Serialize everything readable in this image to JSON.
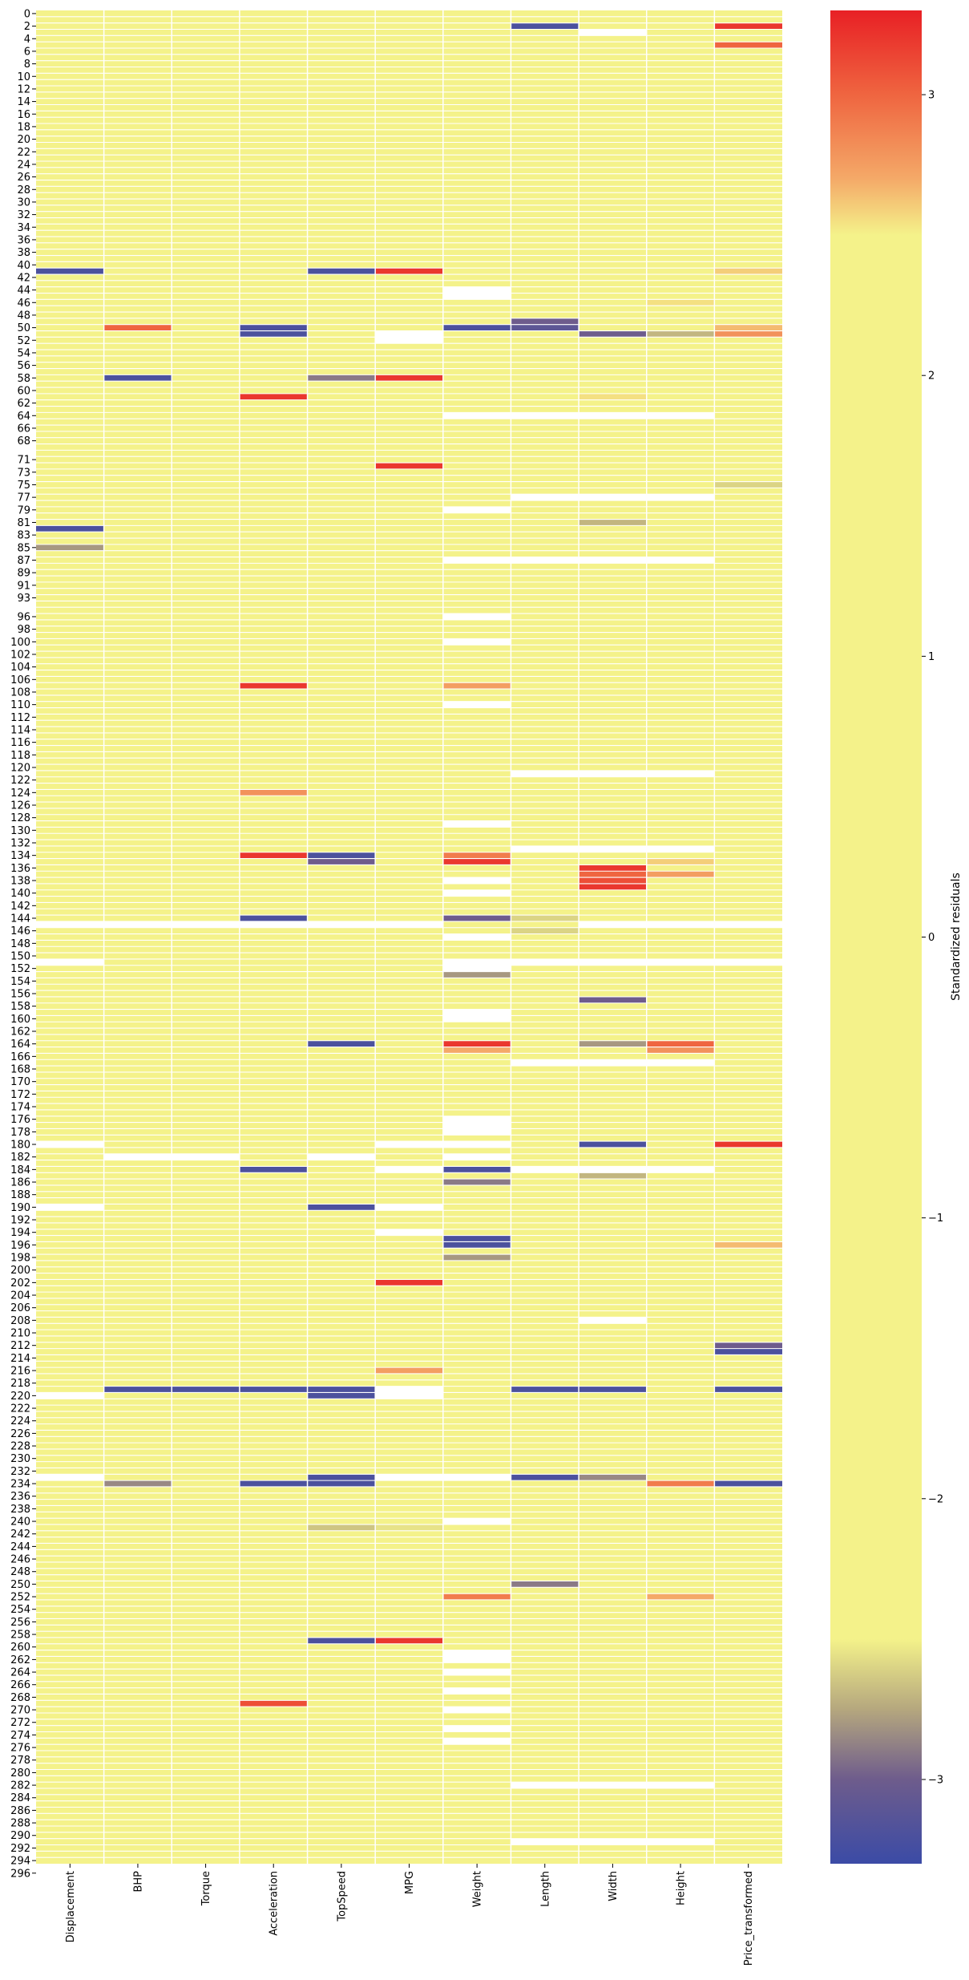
{
  "chart_data": {
    "type": "heatmap",
    "title": "",
    "columns": [
      "Displacement",
      "BHP",
      "Torque",
      "Acceleration",
      "TopSpeed",
      "MPG",
      "Weight",
      "Length",
      "Width",
      "Height",
      "Price_transformed"
    ],
    "row_labels_shown": [
      "0",
      "2",
      "4",
      "6",
      "8",
      "10",
      "12",
      "14",
      "16",
      "18",
      "20",
      "22",
      "24",
      "26",
      "28",
      "30",
      "32",
      "34",
      "36",
      "38",
      "40",
      "42",
      "44",
      "46",
      "48",
      "50",
      "52",
      "54",
      "56",
      "58",
      "60",
      "62",
      "64",
      "66",
      "68",
      "71",
      "73",
      "75",
      "77",
      "79",
      "81",
      "83",
      "85",
      "87",
      "89",
      "91",
      "93",
      "96",
      "98",
      "100",
      "102",
      "104",
      "106",
      "108",
      "110",
      "112",
      "114",
      "116",
      "118",
      "120",
      "122",
      "124",
      "126",
      "128",
      "130",
      "132",
      "134",
      "136",
      "138",
      "140",
      "142",
      "144",
      "146",
      "148",
      "150",
      "152",
      "154",
      "156",
      "158",
      "160",
      "162",
      "164",
      "166",
      "168",
      "170",
      "172",
      "174",
      "176",
      "178",
      "180",
      "182",
      "184",
      "186",
      "188",
      "190",
      "192",
      "194",
      "196",
      "198",
      "200",
      "202",
      "204",
      "206",
      "208",
      "210",
      "212",
      "214",
      "216",
      "218",
      "220",
      "222",
      "224",
      "226",
      "228",
      "230",
      "232",
      "234",
      "236",
      "238",
      "240",
      "242",
      "244",
      "246",
      "248",
      "250",
      "252",
      "254",
      "256",
      "258",
      "260",
      "262",
      "264",
      "266",
      "268",
      "270",
      "272",
      "274",
      "276",
      "278",
      "280",
      "282",
      "284",
      "286",
      "288",
      "290",
      "292",
      "294",
      "296"
    ],
    "n_rows": 295,
    "baseline_value": 0,
    "missing_color": "#ffffff",
    "colorbar": {
      "label": "Standardized residuals",
      "range": [
        -3.3,
        3.3
      ],
      "ticks": [
        3,
        2,
        1,
        0,
        -1,
        -2,
        -3
      ],
      "tick_labels": [
        "3",
        "2",
        "1",
        "0",
        "−1",
        "−2",
        "−3"
      ],
      "stops": [
        {
          "v": -3.3,
          "color": "#3b4ba6"
        },
        {
          "v": -3.0,
          "color": "#6e5c8c"
        },
        {
          "v": -2.75,
          "color": "#b5a77e"
        },
        {
          "v": -2.5,
          "color": "#f4f28a"
        },
        {
          "v": 2.5,
          "color": "#f4f28a"
        },
        {
          "v": 2.7,
          "color": "#f4a968"
        },
        {
          "v": 3.0,
          "color": "#ef6540"
        },
        {
          "v": 3.3,
          "color": "#e82025"
        }
      ]
    },
    "highlighted_cells": [
      {
        "row": 2,
        "col": 7,
        "value": -3.2
      },
      {
        "row": 2,
        "col": 10,
        "value": 3.2
      },
      {
        "row": 5,
        "col": 10,
        "value": 3.0
      },
      {
        "row": 41,
        "col": 0,
        "value": -3.2
      },
      {
        "row": 41,
        "col": 4,
        "value": -3.2
      },
      {
        "row": 41,
        "col": 5,
        "value": 3.2
      },
      {
        "row": 41,
        "col": 10,
        "value": 2.6
      },
      {
        "row": 46,
        "col": 9,
        "value": 2.55
      },
      {
        "row": 49,
        "col": 7,
        "value": -3.0
      },
      {
        "row": 50,
        "col": 1,
        "value": 3.0
      },
      {
        "row": 50,
        "col": 3,
        "value": -3.2
      },
      {
        "row": 50,
        "col": 6,
        "value": -3.2
      },
      {
        "row": 50,
        "col": 7,
        "value": -3.1
      },
      {
        "row": 50,
        "col": 10,
        "value": 2.65
      },
      {
        "row": 51,
        "col": 3,
        "value": -3.2
      },
      {
        "row": 51,
        "col": 8,
        "value": -3.0
      },
      {
        "row": 51,
        "col": 9,
        "value": -2.7
      },
      {
        "row": 51,
        "col": 10,
        "value": 2.8
      },
      {
        "row": 58,
        "col": 1,
        "value": -3.2
      },
      {
        "row": 58,
        "col": 4,
        "value": -2.9
      },
      {
        "row": 58,
        "col": 5,
        "value": 3.2
      },
      {
        "row": 61,
        "col": 3,
        "value": 3.2
      },
      {
        "row": 61,
        "col": 8,
        "value": 2.55
      },
      {
        "row": 72,
        "col": 5,
        "value": 3.2
      },
      {
        "row": 75,
        "col": 10,
        "value": -2.6
      },
      {
        "row": 81,
        "col": 8,
        "value": -2.7
      },
      {
        "row": 82,
        "col": 0,
        "value": -3.2
      },
      {
        "row": 85,
        "col": 0,
        "value": -2.8
      },
      {
        "row": 107,
        "col": 3,
        "value": 3.2
      },
      {
        "row": 107,
        "col": 6,
        "value": 2.75
      },
      {
        "row": 124,
        "col": 3,
        "value": 2.8
      },
      {
        "row": 134,
        "col": 3,
        "value": 3.2
      },
      {
        "row": 134,
        "col": 4,
        "value": -3.2
      },
      {
        "row": 134,
        "col": 6,
        "value": 2.9
      },
      {
        "row": 135,
        "col": 4,
        "value": -3.0
      },
      {
        "row": 135,
        "col": 6,
        "value": 3.2
      },
      {
        "row": 135,
        "col": 9,
        "value": 2.6
      },
      {
        "row": 136,
        "col": 8,
        "value": 3.2
      },
      {
        "row": 137,
        "col": 8,
        "value": 3.0
      },
      {
        "row": 137,
        "col": 9,
        "value": 2.75
      },
      {
        "row": 138,
        "col": 8,
        "value": 3.1
      },
      {
        "row": 139,
        "col": 8,
        "value": 3.2
      },
      {
        "row": 144,
        "col": 3,
        "value": -3.2
      },
      {
        "row": 144,
        "col": 6,
        "value": -3.0
      },
      {
        "row": 144,
        "col": 7,
        "value": -2.6
      },
      {
        "row": 146,
        "col": 7,
        "value": -2.6
      },
      {
        "row": 153,
        "col": 6,
        "value": -2.8
      },
      {
        "row": 157,
        "col": 8,
        "value": -3.0
      },
      {
        "row": 164,
        "col": 4,
        "value": -3.2
      },
      {
        "row": 164,
        "col": 6,
        "value": 3.2
      },
      {
        "row": 164,
        "col": 8,
        "value": -2.8
      },
      {
        "row": 164,
        "col": 9,
        "value": 3.0
      },
      {
        "row": 165,
        "col": 6,
        "value": 2.7
      },
      {
        "row": 165,
        "col": 9,
        "value": 2.8
      },
      {
        "row": 180,
        "col": 8,
        "value": -3.2
      },
      {
        "row": 180,
        "col": 10,
        "value": 3.2
      },
      {
        "row": 184,
        "col": 3,
        "value": -3.2
      },
      {
        "row": 184,
        "col": 6,
        "value": -3.2
      },
      {
        "row": 185,
        "col": 8,
        "value": -2.7
      },
      {
        "row": 186,
        "col": 6,
        "value": -2.9
      },
      {
        "row": 190,
        "col": 4,
        "value": -3.2
      },
      {
        "row": 195,
        "col": 6,
        "value": -3.2
      },
      {
        "row": 196,
        "col": 6,
        "value": -3.2
      },
      {
        "row": 196,
        "col": 10,
        "value": 2.65
      },
      {
        "row": 198,
        "col": 6,
        "value": -2.8
      },
      {
        "row": 202,
        "col": 5,
        "value": 3.2
      },
      {
        "row": 212,
        "col": 10,
        "value": -3.0
      },
      {
        "row": 213,
        "col": 10,
        "value": -3.2
      },
      {
        "row": 216,
        "col": 5,
        "value": 2.75
      },
      {
        "row": 218,
        "col": 0,
        "value": 2.5
      },
      {
        "row": 219,
        "col": 1,
        "value": -3.2
      },
      {
        "row": 219,
        "col": 2,
        "value": -3.2
      },
      {
        "row": 219,
        "col": 3,
        "value": -3.2
      },
      {
        "row": 219,
        "col": 4,
        "value": -3.2
      },
      {
        "row": 219,
        "col": 7,
        "value": -3.2
      },
      {
        "row": 219,
        "col": 8,
        "value": -3.2
      },
      {
        "row": 219,
        "col": 10,
        "value": -3.2
      },
      {
        "row": 220,
        "col": 4,
        "value": -3.2
      },
      {
        "row": 233,
        "col": 4,
        "value": -3.2
      },
      {
        "row": 233,
        "col": 7,
        "value": -3.2
      },
      {
        "row": 233,
        "col": 8,
        "value": -2.85
      },
      {
        "row": 234,
        "col": 1,
        "value": -2.85
      },
      {
        "row": 234,
        "col": 3,
        "value": -3.2
      },
      {
        "row": 234,
        "col": 4,
        "value": -3.2
      },
      {
        "row": 234,
        "col": 9,
        "value": 2.9
      },
      {
        "row": 234,
        "col": 10,
        "value": -3.2
      },
      {
        "row": 241,
        "col": 4,
        "value": -2.65
      },
      {
        "row": 241,
        "col": 5,
        "value": -2.55
      },
      {
        "row": 250,
        "col": 7,
        "value": -2.9
      },
      {
        "row": 252,
        "col": 6,
        "value": 2.9
      },
      {
        "row": 252,
        "col": 9,
        "value": 2.7
      },
      {
        "row": 259,
        "col": 4,
        "value": -3.2
      },
      {
        "row": 259,
        "col": 5,
        "value": 3.2
      },
      {
        "row": 269,
        "col": 3,
        "value": 3.1
      }
    ],
    "missing_cells": [
      {
        "row": 3,
        "col": 8
      },
      {
        "row": 44,
        "col": 6
      },
      {
        "row": 45,
        "col": 6
      },
      {
        "row": 51,
        "col": 5
      },
      {
        "row": 52,
        "col": 5
      },
      {
        "row": 64,
        "col": 6
      },
      {
        "row": 64,
        "col": 7
      },
      {
        "row": 64,
        "col": 8
      },
      {
        "row": 64,
        "col": 9
      },
      {
        "row": 77,
        "col": 7
      },
      {
        "row": 77,
        "col": 8
      },
      {
        "row": 77,
        "col": 9
      },
      {
        "row": 79,
        "col": 6
      },
      {
        "row": 87,
        "col": 6
      },
      {
        "row": 87,
        "col": 7
      },
      {
        "row": 87,
        "col": 8
      },
      {
        "row": 87,
        "col": 9
      },
      {
        "row": 96,
        "col": 6
      },
      {
        "row": 100,
        "col": 6
      },
      {
        "row": 110,
        "col": 6
      },
      {
        "row": 121,
        "col": 7
      },
      {
        "row": 121,
        "col": 8
      },
      {
        "row": 121,
        "col": 9
      },
      {
        "row": 129,
        "col": 6
      },
      {
        "row": 133,
        "col": 7
      },
      {
        "row": 133,
        "col": 8
      },
      {
        "row": 133,
        "col": 9
      },
      {
        "row": 138,
        "col": 6
      },
      {
        "row": 140,
        "col": 6
      },
      {
        "row": 145,
        "col": 0
      },
      {
        "row": 145,
        "col": 1
      },
      {
        "row": 145,
        "col": 2
      },
      {
        "row": 145,
        "col": 3
      },
      {
        "row": 145,
        "col": 4
      },
      {
        "row": 145,
        "col": 5
      },
      {
        "row": 145,
        "col": 8
      },
      {
        "row": 145,
        "col": 9
      },
      {
        "row": 145,
        "col": 10
      },
      {
        "row": 147,
        "col": 6
      },
      {
        "row": 151,
        "col": 0
      },
      {
        "row": 151,
        "col": 6
      },
      {
        "row": 151,
        "col": 7
      },
      {
        "row": 151,
        "col": 8
      },
      {
        "row": 151,
        "col": 9
      },
      {
        "row": 151,
        "col": 10
      },
      {
        "row": 152,
        "col": 6
      },
      {
        "row": 159,
        "col": 6
      },
      {
        "row": 160,
        "col": 6
      },
      {
        "row": 167,
        "col": 7
      },
      {
        "row": 167,
        "col": 8
      },
      {
        "row": 167,
        "col": 9
      },
      {
        "row": 176,
        "col": 6
      },
      {
        "row": 177,
        "col": 6
      },
      {
        "row": 178,
        "col": 6
      },
      {
        "row": 180,
        "col": 0
      },
      {
        "row": 180,
        "col": 5
      },
      {
        "row": 180,
        "col": 6
      },
      {
        "row": 182,
        "col": 1
      },
      {
        "row": 182,
        "col": 2
      },
      {
        "row": 182,
        "col": 4
      },
      {
        "row": 182,
        "col": 6
      },
      {
        "row": 184,
        "col": 5
      },
      {
        "row": 184,
        "col": 7
      },
      {
        "row": 184,
        "col": 8
      },
      {
        "row": 184,
        "col": 9
      },
      {
        "row": 190,
        "col": 0
      },
      {
        "row": 190,
        "col": 5
      },
      {
        "row": 194,
        "col": 5
      },
      {
        "row": 208,
        "col": 8
      },
      {
        "row": 219,
        "col": 5
      },
      {
        "row": 220,
        "col": 0
      },
      {
        "row": 220,
        "col": 5
      },
      {
        "row": 233,
        "col": 0
      },
      {
        "row": 233,
        "col": 5
      },
      {
        "row": 233,
        "col": 6
      },
      {
        "row": 240,
        "col": 6
      },
      {
        "row": 261,
        "col": 6
      },
      {
        "row": 262,
        "col": 6
      },
      {
        "row": 264,
        "col": 6
      },
      {
        "row": 267,
        "col": 6
      },
      {
        "row": 270,
        "col": 6
      },
      {
        "row": 273,
        "col": 6
      },
      {
        "row": 275,
        "col": 6
      },
      {
        "row": 282,
        "col": 7
      },
      {
        "row": 282,
        "col": 8
      },
      {
        "row": 282,
        "col": 9
      },
      {
        "row": 291,
        "col": 7
      },
      {
        "row": 291,
        "col": 8
      },
      {
        "row": 291,
        "col": 9
      }
    ]
  }
}
